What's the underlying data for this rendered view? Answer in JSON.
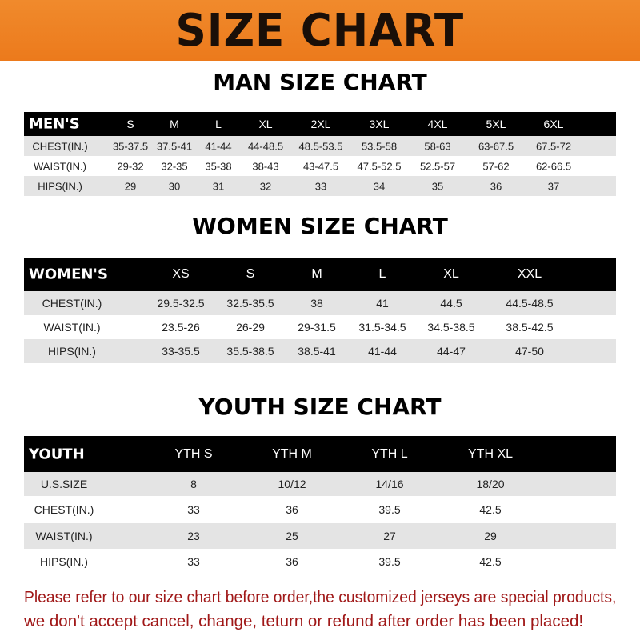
{
  "banner": {
    "title": "SIZE CHART",
    "color": "#ec7a1c"
  },
  "men": {
    "title": "MAN SIZE CHART",
    "header": [
      "MEN'S",
      "S",
      "M",
      "L",
      "XL",
      "2XL",
      "3XL",
      "4XL",
      "5XL",
      "6XL"
    ],
    "rows": [
      [
        "CHEST(IN.)",
        "35-37.5",
        "37.5-41",
        "41-44",
        "44-48.5",
        "48.5-53.5",
        "53.5-58",
        "58-63",
        "63-67.5",
        "67.5-72"
      ],
      [
        "WAIST(IN.)",
        "29-32",
        "32-35",
        "35-38",
        "38-43",
        "43-47.5",
        "47.5-52.5",
        "52.5-57",
        "57-62",
        "62-66.5"
      ],
      [
        "HIPS(IN.)",
        "29",
        "30",
        "31",
        "32",
        "33",
        "34",
        "35",
        "36",
        "37"
      ]
    ]
  },
  "women": {
    "title": "WOMEN SIZE CHART",
    "header": [
      "WOMEN'S",
      "XS",
      "S",
      "M",
      "L",
      "XL",
      "XXL"
    ],
    "rows": [
      [
        "CHEST(IN.)",
        "29.5-32.5",
        "32.5-35.5",
        "38",
        "41",
        "44.5",
        "44.5-48.5"
      ],
      [
        "WAIST(IN.)",
        "23.5-26",
        "26-29",
        "29-31.5",
        "31.5-34.5",
        "34.5-38.5",
        "38.5-42.5"
      ],
      [
        "HIPS(IN.)",
        "33-35.5",
        "35.5-38.5",
        "38.5-41",
        "41-44",
        "44-47",
        "47-50"
      ]
    ]
  },
  "youth": {
    "title": "YOUTH SIZE CHART",
    "header": [
      "YOUTH",
      "YTH S",
      "YTH M",
      "YTH L",
      "YTH XL"
    ],
    "rows": [
      [
        "U.S.SIZE",
        "8",
        "10/12",
        "14/16",
        "18/20"
      ],
      [
        "CHEST(IN.)",
        "33",
        "36",
        "39.5",
        "42.5"
      ],
      [
        "WAIST(IN.)",
        "23",
        "25",
        "27",
        "29"
      ],
      [
        "HIPS(IN.)",
        "33",
        "36",
        "39.5",
        "42.5"
      ]
    ]
  },
  "note": {
    "line1": "Please refer to our size chart before order,the customized jerseys are special products,",
    "line2": "we don't accept cancel, change, teturn or refund after order has been placed!",
    "color": "#a01818"
  }
}
